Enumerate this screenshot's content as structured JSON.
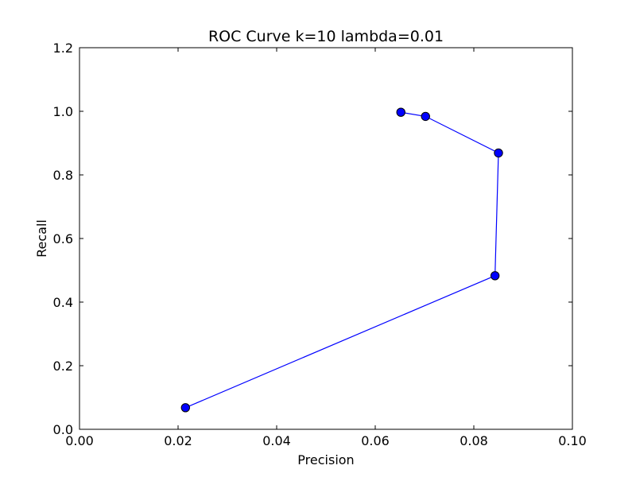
{
  "chart_data": {
    "type": "line",
    "title": "ROC Curve k=10 lambda=0.01",
    "xlabel": "Precision",
    "ylabel": "Recall",
    "xlim": [
      0.0,
      0.1
    ],
    "ylim": [
      0.0,
      1.2
    ],
    "x_ticks": [
      "0.00",
      "0.02",
      "0.04",
      "0.06",
      "0.08",
      "0.10"
    ],
    "x_tick_values": [
      0.0,
      0.02,
      0.04,
      0.06,
      0.08,
      0.1
    ],
    "y_ticks": [
      "0.0",
      "0.2",
      "0.4",
      "0.6",
      "0.8",
      "1.0",
      "1.2"
    ],
    "y_tick_values": [
      0.0,
      0.2,
      0.4,
      0.6,
      0.8,
      1.0,
      1.2
    ],
    "grid": false,
    "series": [
      {
        "color": "#0000ff",
        "marker": "circle",
        "x": [
          0.0215,
          0.0843,
          0.085,
          0.0702,
          0.0652
        ],
        "y": [
          0.068,
          0.483,
          0.869,
          0.984,
          0.997
        ]
      }
    ]
  }
}
